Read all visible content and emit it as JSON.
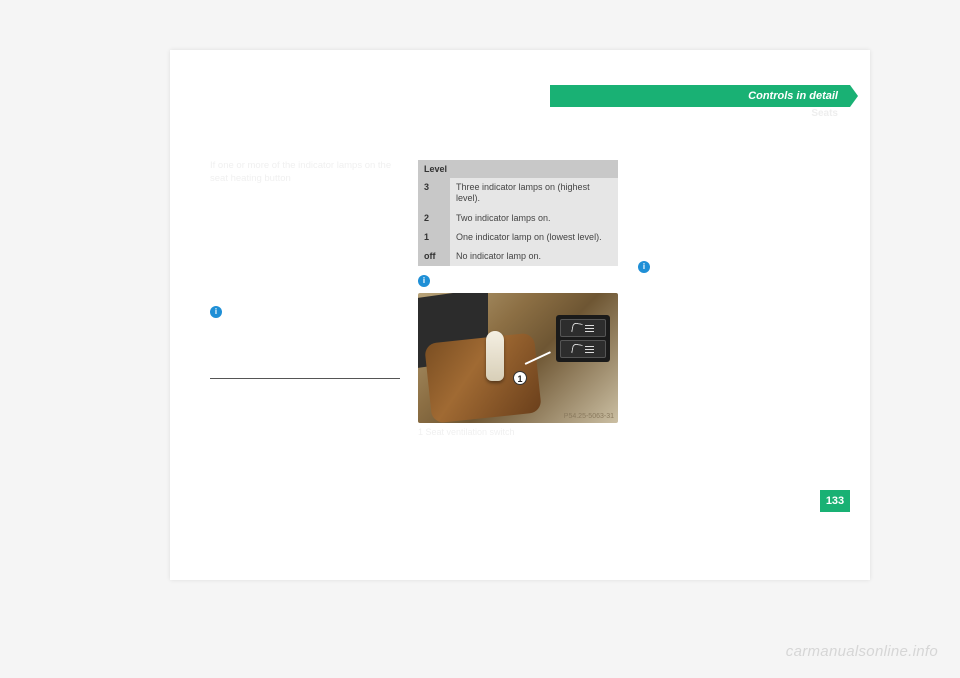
{
  "header": {
    "title": "Controls in detail",
    "subtitle": "Seats",
    "bar_color": "#19b174",
    "title_color": "#ffffff"
  },
  "left_column": {
    "p1": "If one or more of the indicator lamps on the seat heating button",
    "info1": "",
    "note_after": ""
  },
  "table": {
    "header": "Level",
    "rows": [
      {
        "key": "3",
        "val": "Three indicator lamps on (highest level)."
      },
      {
        "key": "2",
        "val": "Two indicator lamps on."
      },
      {
        "key": "1",
        "val": "One indicator lamp on (lowest level)."
      },
      {
        "key": "off",
        "val": "No indicator lamp on."
      }
    ],
    "header_bg": "#c8c8c8",
    "key_bg": "#c8c8c8",
    "val_bg": "#e6e6e6"
  },
  "mid_column": {
    "info1": "",
    "caption": "1 Seat ventilation switch"
  },
  "right_column": {
    "p1": "",
    "info1": ""
  },
  "photo": {
    "ref": "P54.25-5063-31",
    "marker": "1"
  },
  "page_number": "133",
  "watermark": "carmanualsonline.info"
}
